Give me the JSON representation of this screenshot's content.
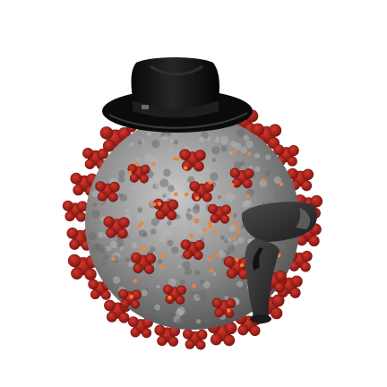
{
  "scene": {
    "background": "#ffffff",
    "subjects": [
      "virus-particle",
      "fedora-hat",
      "barcode-scanner"
    ],
    "colors": {
      "virus_body": "#8f8f8f",
      "virus_shadow": "#5a5a5a",
      "spike": "#b3261e",
      "spike_dark": "#7a1510",
      "dot": "#f0823a",
      "hat": "#111111",
      "hat_band": "#2a2a2a",
      "scanner": "#2e2e2e",
      "scanner_window": "#5a5a5a"
    }
  }
}
